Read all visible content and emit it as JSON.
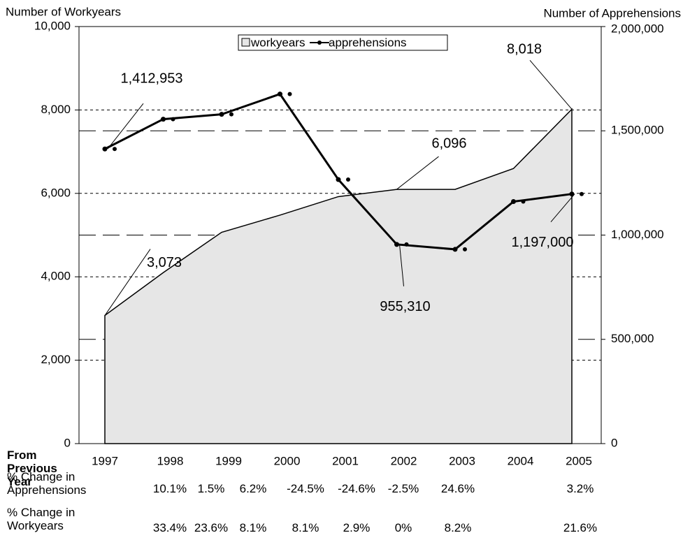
{
  "chart_data": {
    "type": "area-line",
    "titles": {
      "left": "Number of Workyears",
      "right": "Number of Apprehensions"
    },
    "categories": [
      "1997",
      "1998",
      "1999",
      "2000",
      "2001",
      "2002",
      "2003",
      "2004",
      "2005"
    ],
    "series": [
      {
        "name": "workyears",
        "type": "area",
        "color": "#e6e6e6",
        "values": [
          3073,
          4100,
          5067,
          5478,
          5922,
          6096,
          6096,
          6596,
          8018
        ],
        "value_labels": [
          "3,073",
          null,
          null,
          null,
          null,
          "6,096",
          null,
          null,
          "8,018"
        ]
      },
      {
        "name": "apprehensions",
        "type": "line",
        "axis": "y2",
        "color": "#000000",
        "values": [
          1412953,
          1555800,
          1579000,
          1676400,
          1266200,
          955310,
          931600,
          1160700,
          1197000
        ],
        "value_labels": [
          "1,412,953",
          null,
          null,
          null,
          null,
          "955,310",
          null,
          null,
          "1,197,000"
        ]
      }
    ],
    "ylim": [
      0,
      10000
    ],
    "yticks": [
      0,
      {
        "value": 2000,
        "label": "2,000"
      },
      {
        "value": 4000,
        "label": "4,000"
      },
      {
        "value": 6000,
        "label": "6,000"
      },
      {
        "value": 8000,
        "label": "8,000"
      },
      {
        "value": 10000,
        "label": "10,000"
      }
    ],
    "y2lim": [
      0,
      2000000
    ],
    "y2ticks": [
      0,
      {
        "value": 500000,
        "label": "500,000"
      },
      {
        "value": 1000000,
        "label": "1,000,000"
      },
      {
        "value": 1500000,
        "label": "1,500,000"
      },
      {
        "value": 2000000,
        "label": "2,000,000"
      }
    ],
    "grid": true,
    "legend": "top"
  },
  "table": {
    "header": "From Previous Year",
    "rows": [
      {
        "label": "% Change in Apprehensions",
        "values": [
          "10.1%",
          "1.5%",
          "6.2%",
          "-24.5%",
          "-24.6%",
          "-2.5%",
          "24.6%",
          "3.2%"
        ]
      },
      {
        "label": "% Change in Workyears",
        "values": [
          "33.4%",
          "23.6%",
          "8.1%",
          "8.1%",
          "2.9%",
          "0%",
          "8.2%",
          "21.6%"
        ]
      }
    ]
  }
}
